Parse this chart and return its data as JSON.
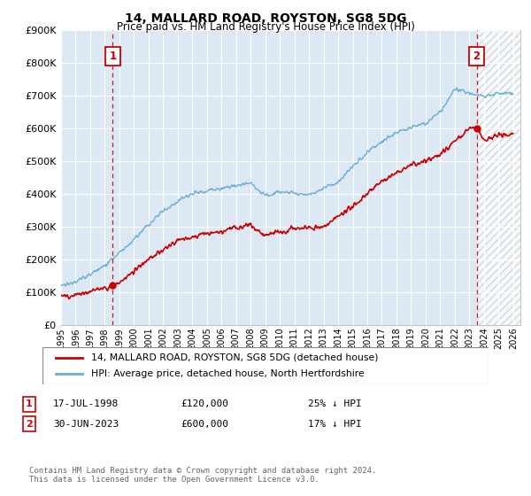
{
  "title": "14, MALLARD ROAD, ROYSTON, SG8 5DG",
  "subtitle": "Price paid vs. HM Land Registry's House Price Index (HPI)",
  "legend_line1": "14, MALLARD ROAD, ROYSTON, SG8 5DG (detached house)",
  "legend_line2": "HPI: Average price, detached house, North Hertfordshire",
  "annotation1_label": "1",
  "annotation1_date": "17-JUL-1998",
  "annotation1_price": "£120,000",
  "annotation1_hpi": "25% ↓ HPI",
  "annotation1_year": 1998.54,
  "annotation1_value": 120000,
  "annotation2_label": "2",
  "annotation2_date": "30-JUN-2023",
  "annotation2_price": "£600,000",
  "annotation2_hpi": "17% ↓ HPI",
  "annotation2_year": 2023.5,
  "annotation2_value": 600000,
  "footer": "Contains HM Land Registry data © Crown copyright and database right 2024.\nThis data is licensed under the Open Government Licence v3.0.",
  "hpi_color": "#6baed6",
  "price_color": "#cc0000",
  "annotation_box_color": "#cc0000",
  "bg_color": "#dce9f5",
  "ylim": [
    0,
    900000
  ],
  "xlim_start": 1995.0,
  "xlim_end": 2026.5,
  "yticks": [
    0,
    100000,
    200000,
    300000,
    400000,
    500000,
    600000,
    700000,
    800000,
    900000
  ],
  "xticks": [
    1995,
    1996,
    1997,
    1998,
    1999,
    2000,
    2001,
    2002,
    2003,
    2004,
    2005,
    2006,
    2007,
    2008,
    2009,
    2010,
    2011,
    2012,
    2013,
    2014,
    2015,
    2016,
    2017,
    2018,
    2019,
    2020,
    2021,
    2022,
    2023,
    2024,
    2025,
    2026
  ],
  "hatch_start": 2023.5,
  "hatch_color": "#aaaaaa"
}
